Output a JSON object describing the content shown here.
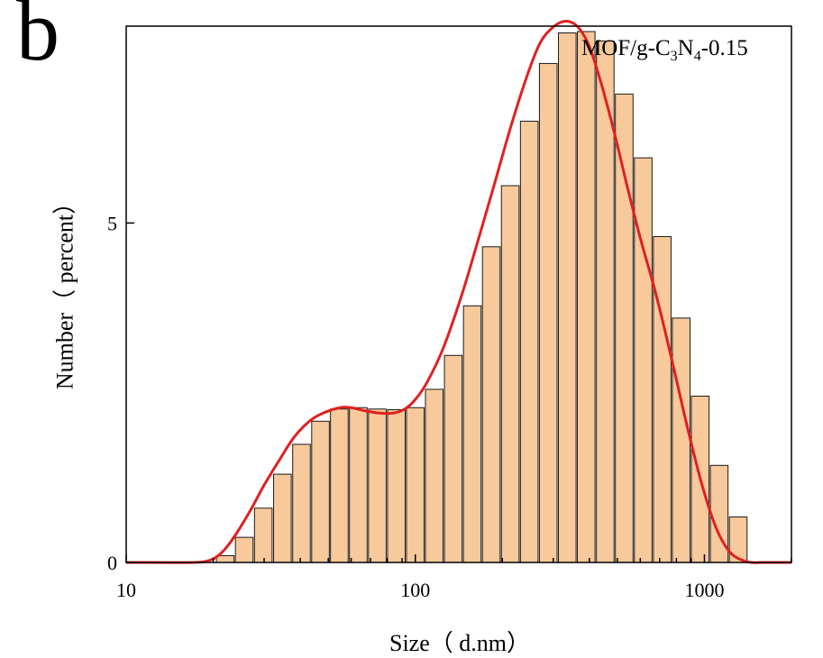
{
  "panel_letter": "b",
  "colors": {
    "bar_fill": "#f8c99a",
    "bar_stroke": "#1a1a1a",
    "curve": "#e02020",
    "axis": "#000000"
  },
  "chart_data": {
    "type": "bar",
    "legend": {
      "prefix": "MOF/g-C",
      "sub1": "3",
      "mid": "N",
      "sub2": "4",
      "suffix": "-0.15",
      "position": "top-right"
    },
    "xlabel": "Size（ d.nm）",
    "ylabel": "Number（ percent）",
    "x_scale": "log",
    "xlim": [
      10,
      2000
    ],
    "ylim": [
      0,
      7.9
    ],
    "x_ticks": [
      10,
      100,
      1000
    ],
    "x_tick_labels": [
      "10",
      "100",
      "1000"
    ],
    "y_ticks": [
      0,
      5
    ],
    "y_tick_labels": [
      "0",
      "5"
    ],
    "grid": false,
    "bar_centers": [
      22.0,
      25.6,
      29.8,
      34.7,
      40.4,
      47.0,
      54.6,
      63.5,
      73.9,
      86.0,
      100.0,
      116.3,
      135.3,
      157.4,
      183.1,
      213.0,
      247.8,
      288.3,
      335.4,
      390.0,
      453.9,
      528.0,
      614.2,
      714.6,
      831.3,
      967.1,
      1125.0,
      1309.0
    ],
    "values": [
      0.1,
      0.37,
      0.8,
      1.3,
      1.74,
      2.08,
      2.26,
      2.28,
      2.26,
      2.25,
      2.28,
      2.55,
      3.05,
      3.78,
      4.65,
      5.55,
      6.5,
      7.35,
      7.8,
      7.82,
      7.68,
      6.9,
      5.96,
      4.8,
      3.6,
      2.45,
      1.43,
      0.67
    ],
    "fit_curve": {
      "x": [
        10,
        17,
        19,
        20.5,
        22,
        24,
        27,
        30,
        34,
        38,
        43,
        48,
        55,
        60,
        66,
        75,
        84,
        92,
        100,
        110,
        125,
        145,
        165,
        190,
        215,
        245,
        270,
        295,
        320,
        345,
        370,
        400,
        440,
        490,
        540,
        600,
        680,
        770,
        870,
        980,
        1100,
        1220,
        1340,
        1450,
        1600,
        2000
      ],
      "y": [
        0,
        0,
        0.02,
        0.08,
        0.2,
        0.42,
        0.78,
        1.14,
        1.52,
        1.84,
        2.08,
        2.2,
        2.28,
        2.28,
        2.24,
        2.2,
        2.2,
        2.26,
        2.4,
        2.66,
        3.16,
        3.95,
        4.75,
        5.65,
        6.45,
        7.2,
        7.65,
        7.86,
        7.96,
        7.96,
        7.86,
        7.6,
        7.05,
        6.3,
        5.55,
        4.78,
        3.95,
        3.0,
        2.02,
        1.15,
        0.5,
        0.16,
        0.04,
        0.0,
        0,
        0
      ]
    }
  }
}
